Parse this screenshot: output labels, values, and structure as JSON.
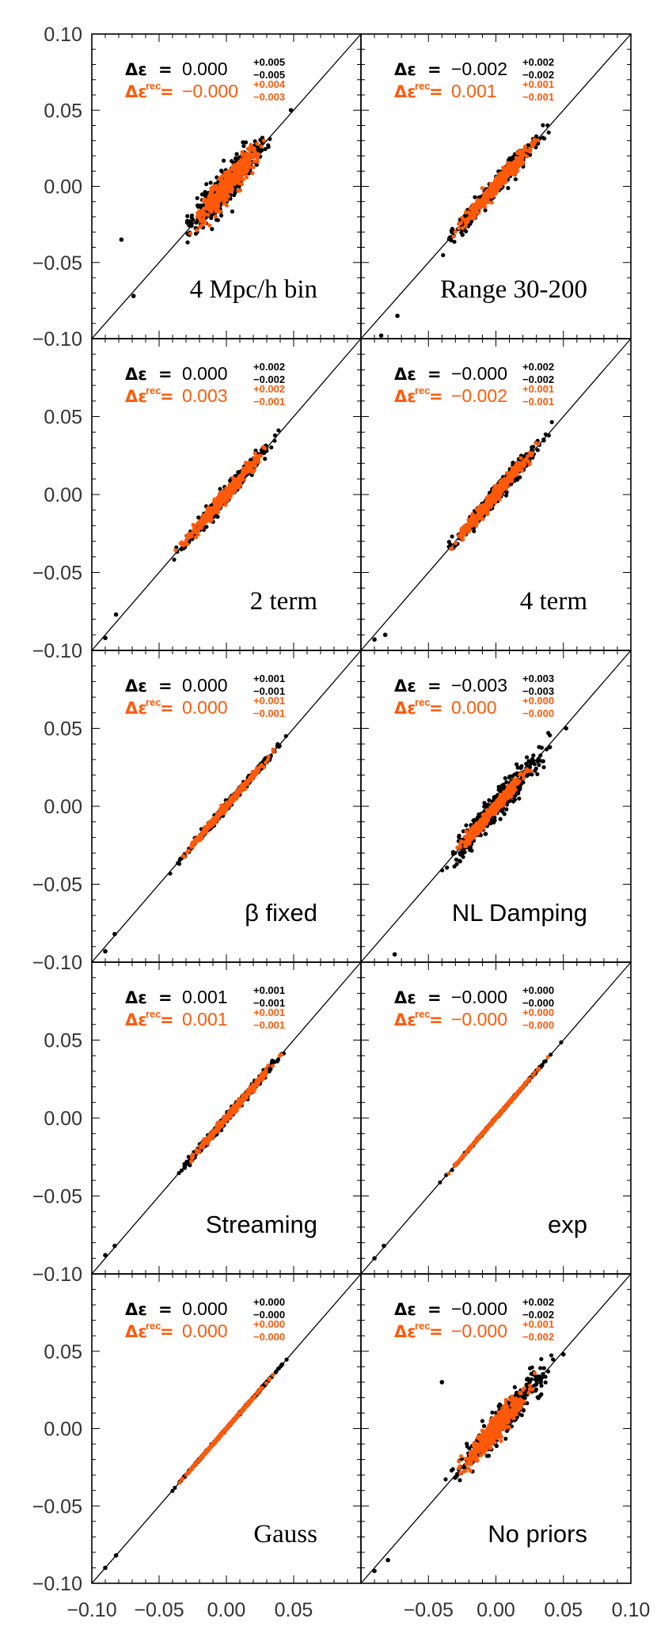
{
  "figure": {
    "colors": {
      "black_series": "#000000",
      "orange_series": "#ff5a0a",
      "axis": "#000000"
    },
    "axes": {
      "xlim": [
        -0.1,
        0.1
      ],
      "ylim": [
        -0.1,
        0.1
      ],
      "left_column_x_ticks": [
        "−0.10",
        "−0.05",
        "0.00",
        "0.05"
      ],
      "right_column_x_ticks": [
        "−0.05",
        "0.00",
        "0.05",
        "0.10"
      ],
      "y_ticks_top_row": [
        "0.10",
        "0.05",
        "0.00",
        "−0.05",
        "−0.10"
      ],
      "y_ticks_other_rows": [
        "0.05",
        "0.00",
        "−0.05",
        "−0.10"
      ]
    },
    "symbols": {
      "delta_eps": "Δε",
      "equals": "=",
      "rec_superscript": "rec"
    }
  },
  "chart_data": [
    {
      "type": "scatter",
      "label": "4 Mpc/h bin",
      "label_style": "serif",
      "diagonal": true,
      "xlim": [
        -0.1,
        0.1
      ],
      "ylim": [
        -0.1,
        0.1
      ],
      "black": {
        "value": "0.000",
        "plus": "+0.005",
        "minus": "−0.005",
        "scatter": 0.006,
        "range": [
          -0.04,
          0.04
        ],
        "outliers": [
          [
            -0.078,
            -0.035
          ],
          [
            -0.069,
            -0.072
          ],
          [
            0.048,
            0.05
          ]
        ]
      },
      "orange": {
        "value": "−0.000",
        "plus": "+0.004",
        "minus": "−0.003",
        "scatter": 0.0045,
        "range": [
          -0.03,
          0.032
        ]
      }
    },
    {
      "type": "scatter",
      "label": "Range 30-200",
      "label_style": "serif",
      "diagonal": true,
      "xlim": [
        -0.1,
        0.1
      ],
      "ylim": [
        -0.1,
        0.1
      ],
      "black": {
        "value": "−0.002",
        "plus": "+0.002",
        "minus": "−0.002",
        "scatter": 0.003,
        "range": [
          -0.045,
          0.048
        ],
        "outliers": [
          [
            -0.085,
            -0.098
          ],
          [
            -0.073,
            -0.085
          ]
        ]
      },
      "orange": {
        "value": "0.001",
        "plus": "+0.001",
        "minus": "−0.001",
        "scatter": 0.0025,
        "range": [
          -0.035,
          0.035
        ]
      }
    },
    {
      "type": "scatter",
      "label": "2 term",
      "label_style": "serif",
      "diagonal": true,
      "xlim": [
        -0.1,
        0.1
      ],
      "ylim": [
        -0.1,
        0.1
      ],
      "black": {
        "value": "0.000",
        "plus": "+0.002",
        "minus": "−0.002",
        "scatter": 0.0025,
        "range": [
          -0.045,
          0.045
        ],
        "outliers": [
          [
            -0.09,
            -0.092
          ],
          [
            -0.082,
            -0.077
          ]
        ]
      },
      "orange": {
        "value": "0.003",
        "plus": "+0.002",
        "minus": "−0.001",
        "scatter": 0.0022,
        "range": [
          -0.04,
          0.035
        ]
      }
    },
    {
      "type": "scatter",
      "label": "4 term",
      "label_style": "serif",
      "diagonal": true,
      "xlim": [
        -0.1,
        0.1
      ],
      "ylim": [
        -0.1,
        0.1
      ],
      "black": {
        "value": "−0.000",
        "plus": "+0.002",
        "minus": "−0.002",
        "scatter": 0.0028,
        "range": [
          -0.045,
          0.05
        ],
        "outliers": [
          [
            -0.09,
            -0.093
          ],
          [
            -0.082,
            -0.09
          ]
        ]
      },
      "orange": {
        "value": "−0.002",
        "plus": "+0.001",
        "minus": "−0.001",
        "scatter": 0.0022,
        "range": [
          -0.04,
          0.035
        ]
      }
    },
    {
      "type": "scatter",
      "label": "β fixed",
      "label_style": "sans",
      "diagonal": true,
      "xlim": [
        -0.1,
        0.1
      ],
      "ylim": [
        -0.1,
        0.1
      ],
      "black": {
        "value": "0.000",
        "plus": "+0.001",
        "minus": "−0.001",
        "scatter": 0.0012,
        "range": [
          -0.045,
          0.05
        ],
        "outliers": [
          [
            -0.09,
            -0.093
          ],
          [
            -0.083,
            -0.082
          ]
        ]
      },
      "orange": {
        "value": "0.000",
        "plus": "+0.001",
        "minus": "−0.001",
        "scatter": 0.001,
        "range": [
          -0.04,
          0.04
        ]
      }
    },
    {
      "type": "scatter",
      "label": "NL Damping",
      "label_style": "sans",
      "diagonal": true,
      "xlim": [
        -0.1,
        0.1
      ],
      "ylim": [
        -0.1,
        0.1
      ],
      "black": {
        "value": "−0.003",
        "plus": "+0.003",
        "minus": "−0.003",
        "scatter": 0.0045,
        "range": [
          -0.045,
          0.048
        ],
        "outliers": [
          [
            -0.075,
            -0.095
          ],
          [
            0.052,
            0.05
          ]
        ]
      },
      "orange": {
        "value": "0.000",
        "plus": "+0.000",
        "minus": "−0.000",
        "scatter": 0.002,
        "range": [
          -0.035,
          0.03
        ]
      }
    },
    {
      "type": "scatter",
      "label": "Streaming",
      "label_style": "sans",
      "diagonal": true,
      "xlim": [
        -0.1,
        0.1
      ],
      "ylim": [
        -0.1,
        0.1
      ],
      "black": {
        "value": "0.001",
        "plus": "+0.001",
        "minus": "−0.001",
        "scatter": 0.0013,
        "range": [
          -0.045,
          0.05
        ],
        "outliers": [
          [
            -0.09,
            -0.088
          ],
          [
            -0.083,
            -0.082
          ]
        ]
      },
      "orange": {
        "value": "0.001",
        "plus": "+0.001",
        "minus": "−0.001",
        "scatter": 0.0011,
        "range": [
          -0.035,
          0.045
        ]
      }
    },
    {
      "type": "scatter",
      "label": "exp",
      "label_style": "sans",
      "diagonal": true,
      "xlim": [
        -0.1,
        0.1
      ],
      "ylim": [
        -0.1,
        0.1
      ],
      "black": {
        "value": "−0.000",
        "plus": "+0.000",
        "minus": "−0.000",
        "scatter": 0.0003,
        "range": [
          -0.045,
          0.05
        ],
        "outliers": [
          [
            -0.09,
            -0.09
          ],
          [
            -0.083,
            -0.082
          ]
        ]
      },
      "orange": {
        "value": "−0.000",
        "plus": "+0.000",
        "minus": "−0.000",
        "scatter": 0.0003,
        "range": [
          -0.04,
          0.04
        ]
      }
    },
    {
      "type": "scatter",
      "label": "Gauss",
      "label_style": "serif",
      "diagonal": true,
      "xlim": [
        -0.1,
        0.1
      ],
      "ylim": [
        -0.1,
        0.1
      ],
      "black": {
        "value": "0.000",
        "plus": "+0.000",
        "minus": "−0.000",
        "scatter": 0.0003,
        "range": [
          -0.045,
          0.05
        ],
        "outliers": [
          [
            -0.09,
            -0.09
          ],
          [
            -0.082,
            -0.082
          ]
        ]
      },
      "orange": {
        "value": "0.000",
        "plus": "+0.000",
        "minus": "−0.000",
        "scatter": 0.0003,
        "range": [
          -0.04,
          0.04
        ]
      }
    },
    {
      "type": "scatter",
      "label": "No priors",
      "label_style": "sans",
      "diagonal": true,
      "xlim": [
        -0.1,
        0.1
      ],
      "ylim": [
        -0.1,
        0.1
      ],
      "black": {
        "value": "−0.000",
        "plus": "+0.002",
        "minus": "−0.002",
        "scatter": 0.005,
        "range": [
          -0.04,
          0.05
        ],
        "outliers": [
          [
            -0.09,
            -0.092
          ],
          [
            -0.08,
            -0.085
          ],
          [
            -0.04,
            0.03
          ],
          [
            0.05,
            0.048
          ]
        ]
      },
      "orange": {
        "value": "−0.000",
        "plus": "+0.001",
        "minus": "−0.002",
        "scatter": 0.004,
        "range": [
          -0.035,
          0.035
        ]
      }
    }
  ]
}
